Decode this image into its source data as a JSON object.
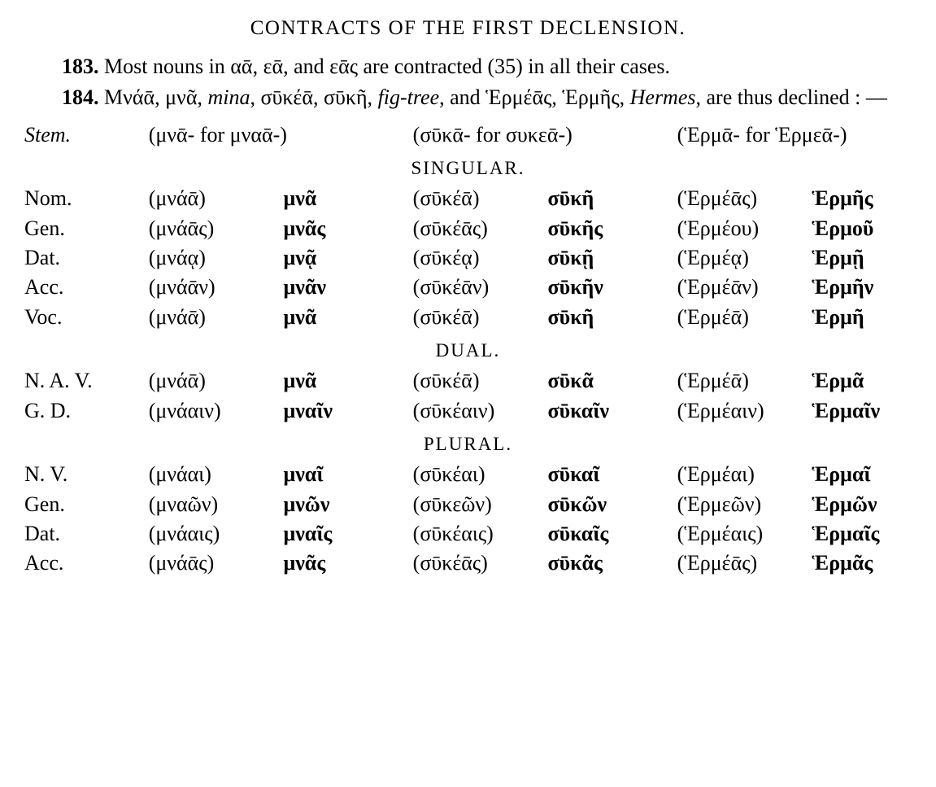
{
  "title": "CONTRACTS OF THE FIRST DECLENSION.",
  "para183": {
    "num": "183.",
    "text_a": " Most nouns in ",
    "gk1": "αᾱ",
    "sep1": ", ",
    "gk2": "εᾱ",
    "sep2": ", and ",
    "gk3": "εᾱς",
    "text_b": " are contracted (35) in all their cases."
  },
  "para184": {
    "num": "184.",
    "line": " Μνάᾱ, μνᾶ, ",
    "it1": "mina",
    "mid": ", σῡκέᾱ, σῡκῆ, ",
    "it2": "fig-tree",
    "mid2": ", and Ἑρμέᾱς, Ἑρμῆς, ",
    "it3": "Hermes",
    "end": ", are thus declined : —"
  },
  "stemrow": {
    "label": "Stem.",
    "c1": "(μνᾱ- for μναᾱ-)",
    "c2": "(σῡκᾱ- for συκεᾱ-)",
    "c3": "(Ἑρμᾱ- for Ἑρμεᾱ-)"
  },
  "sections": {
    "sing": "SINGULAR.",
    "dual": "DUAL.",
    "plur": "PLURAL."
  },
  "rows": [
    {
      "sec": "sing",
      "l": "Nom.",
      "p1": "(μνάᾱ)",
      "c1": "μνᾶ",
      "p2": "(σῡκέᾱ)",
      "c2": "σῡκῆ",
      "p3": "(Ἑρμέᾱς)",
      "c3": "Ἑρμῆς"
    },
    {
      "sec": "sing",
      "l": "Gen.",
      "p1": "(μνάᾱς)",
      "c1": "μνᾶς",
      "p2": "(σῡκέᾱς)",
      "c2": "σῡκῆς",
      "p3": "(Ἑρμέου)",
      "c3": "Ἑρμοῦ"
    },
    {
      "sec": "sing",
      "l": "Dat.",
      "p1": "(μνάᾳ)",
      "c1": "μνᾷ",
      "p2": "(σῡκέᾳ)",
      "c2": "σῡκῇ",
      "p3": "(Ἑρμέᾳ)",
      "c3": "Ἑρμῇ"
    },
    {
      "sec": "sing",
      "l": "Acc.",
      "p1": "(μνάᾱν)",
      "c1": "μνᾶν",
      "p2": "(σῡκέᾱν)",
      "c2": "σῡκῆν",
      "p3": "(Ἑρμέᾱν)",
      "c3": "Ἑρμῆν"
    },
    {
      "sec": "sing",
      "l": "Voc.",
      "p1": "(μνάᾱ)",
      "c1": "μνᾶ",
      "p2": "(σῡκέᾱ)",
      "c2": "σῡκῆ",
      "p3": "(Ἑρμέᾱ)",
      "c3": "Ἑρμῆ"
    },
    {
      "sec": "dual",
      "l": "N. A. V.",
      "p1": "(μνάᾱ)",
      "c1": "μνᾶ",
      "p2": "(σῡκέᾱ)",
      "c2": "σῡκᾶ",
      "p3": "(Ἑρμέᾱ)",
      "c3": "Ἑρμᾶ"
    },
    {
      "sec": "dual",
      "l": "G. D.",
      "p1": "(μνάαιν)",
      "c1": "μναῖν",
      "p2": "(σῡκέαιν)",
      "c2": "σῡκαῖν",
      "p3": "(Ἑρμέαιν)",
      "c3": "Ἑρμαῖν"
    },
    {
      "sec": "plur",
      "l": "N. V.",
      "p1": "(μνάαι)",
      "c1": "μναῖ",
      "p2": "(σῡκέαι)",
      "c2": "σῡκαῖ",
      "p3": "(Ἑρμέαι)",
      "c3": "Ἑρμαῖ"
    },
    {
      "sec": "plur",
      "l": "Gen.",
      "p1": "(μναῶν)",
      "c1": "μνῶν",
      "p2": "(σῡκεῶν)",
      "c2": "σῡκῶν",
      "p3": "(Ἑρμεῶν)",
      "c3": "Ἑρμῶν"
    },
    {
      "sec": "plur",
      "l": "Dat.",
      "p1": "(μνάαις)",
      "c1": "μναῖς",
      "p2": "(σῡκέαις)",
      "c2": "σῡκαῖς",
      "p3": "(Ἑρμέαις)",
      "c3": "Ἑρμαῖς"
    },
    {
      "sec": "plur",
      "l": "Acc.",
      "p1": "(μνάᾱς)",
      "c1": "μνᾶς",
      "p2": "(σῡκέᾱς)",
      "c2": "σῡκᾶς",
      "p3": "(Ἑρμέᾱς)",
      "c3": "Ἑρμᾶς"
    }
  ]
}
